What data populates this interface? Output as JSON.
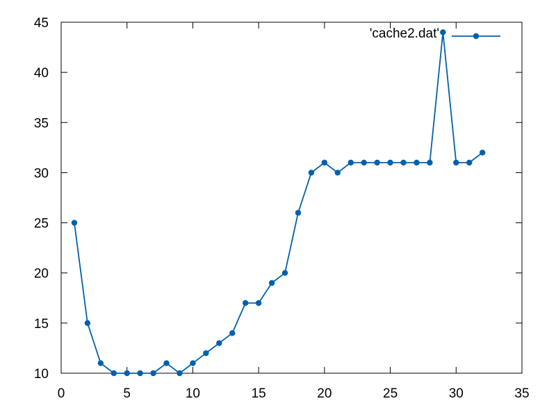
{
  "chart_data": {
    "type": "line",
    "title": "",
    "xlabel": "",
    "ylabel": "",
    "xlim": [
      0,
      35
    ],
    "ylim": [
      10,
      45
    ],
    "xticks": [
      0,
      5,
      10,
      15,
      20,
      25,
      30,
      35
    ],
    "yticks": [
      10,
      15,
      20,
      25,
      30,
      35,
      40,
      45
    ],
    "grid": false,
    "legend_position": "top-right",
    "series": [
      {
        "name": "'cache2.dat'",
        "color": "#0060ad",
        "marker": "circle",
        "x": [
          1,
          2,
          3,
          4,
          5,
          6,
          7,
          8,
          9,
          10,
          11,
          12,
          13,
          14,
          15,
          16,
          17,
          18,
          19,
          20,
          21,
          22,
          23,
          24,
          25,
          26,
          27,
          28,
          29,
          30,
          31,
          32
        ],
        "y": [
          25,
          15,
          11,
          10,
          10,
          10,
          10,
          11,
          10,
          11,
          12,
          13,
          14,
          17,
          17,
          19,
          20,
          26,
          30,
          31,
          30,
          31,
          31,
          31,
          31,
          31,
          31,
          31,
          44,
          31,
          31,
          32
        ]
      }
    ]
  }
}
